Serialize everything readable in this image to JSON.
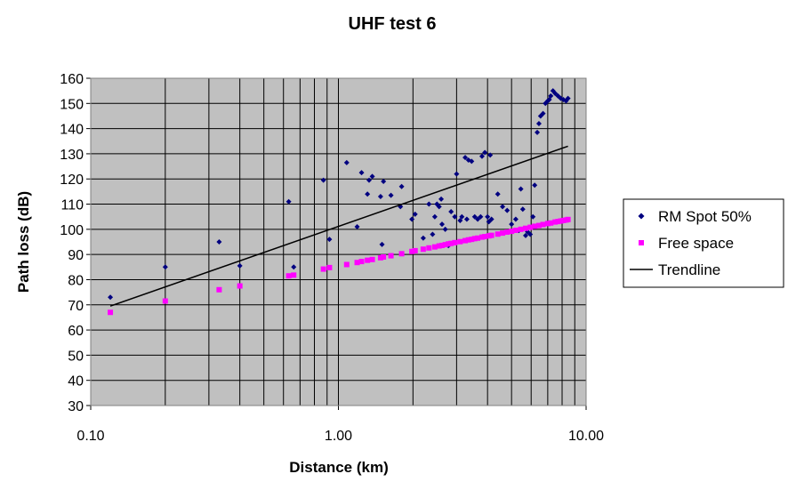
{
  "chart_data": {
    "type": "scatter",
    "title": "UHF test 6",
    "xlabel": "Distance (km)",
    "ylabel": "Path loss (dB)",
    "x_scale": "log",
    "xlim": [
      0.1,
      10
    ],
    "ylim": [
      30,
      160
    ],
    "x_ticks": [
      0.1,
      1,
      10
    ],
    "x_tick_labels": [
      "0.10",
      "1.00",
      "10.00"
    ],
    "y_ticks": [
      30,
      40,
      50,
      60,
      70,
      80,
      90,
      100,
      110,
      120,
      130,
      140,
      150,
      160
    ],
    "y_tick_labels": [
      "30",
      "40",
      "50",
      "60",
      "70",
      "80",
      "90",
      "100",
      "110",
      "120",
      "130",
      "140",
      "150",
      "160"
    ],
    "grid": true,
    "plot_background": "#c0c0c0",
    "legend_position": "right",
    "series": [
      {
        "name": "RM Spot 50%",
        "kind": "scatter",
        "marker": "diamond",
        "color": "#000080",
        "points": [
          [
            0.12,
            73
          ],
          [
            0.2,
            85
          ],
          [
            0.33,
            95
          ],
          [
            0.4,
            85.5
          ],
          [
            0.63,
            111
          ],
          [
            0.66,
            85
          ],
          [
            0.87,
            119.5
          ],
          [
            0.92,
            96
          ],
          [
            1.08,
            126.5
          ],
          [
            1.19,
            101
          ],
          [
            1.24,
            122.5
          ],
          [
            1.31,
            114
          ],
          [
            1.33,
            119.5
          ],
          [
            1.37,
            121
          ],
          [
            1.48,
            113
          ],
          [
            1.5,
            94
          ],
          [
            1.52,
            119
          ],
          [
            1.63,
            113.5
          ],
          [
            1.8,
            117
          ],
          [
            1.78,
            109
          ],
          [
            1.98,
            104
          ],
          [
            2.04,
            106
          ],
          [
            2.2,
            96.5
          ],
          [
            2.32,
            110
          ],
          [
            2.4,
            98
          ],
          [
            2.45,
            105
          ],
          [
            2.5,
            110
          ],
          [
            2.55,
            109
          ],
          [
            2.6,
            112
          ],
          [
            2.62,
            102
          ],
          [
            2.7,
            100
          ],
          [
            2.78,
            93.5
          ],
          [
            2.85,
            107
          ],
          [
            2.95,
            105
          ],
          [
            3.0,
            122
          ],
          [
            3.1,
            103.5
          ],
          [
            3.15,
            105
          ],
          [
            3.25,
            128.5
          ],
          [
            3.3,
            104
          ],
          [
            3.35,
            127.5
          ],
          [
            3.45,
            127
          ],
          [
            3.55,
            105
          ],
          [
            3.65,
            104
          ],
          [
            3.75,
            105
          ],
          [
            3.8,
            129
          ],
          [
            3.9,
            130.5
          ],
          [
            4.0,
            105
          ],
          [
            4.05,
            103
          ],
          [
            4.1,
            129.5
          ],
          [
            4.15,
            104
          ],
          [
            4.4,
            114
          ],
          [
            4.6,
            109
          ],
          [
            4.8,
            107.5
          ],
          [
            5.0,
            102
          ],
          [
            5.2,
            104
          ],
          [
            5.35,
            99.5
          ],
          [
            5.45,
            116
          ],
          [
            5.55,
            108
          ],
          [
            5.7,
            97.5
          ],
          [
            5.8,
            99
          ],
          [
            5.95,
            98
          ],
          [
            6.1,
            105
          ],
          [
            6.2,
            117.5
          ],
          [
            6.35,
            138.5
          ],
          [
            6.45,
            142
          ],
          [
            6.55,
            145
          ],
          [
            6.7,
            146
          ],
          [
            6.85,
            150
          ],
          [
            7.0,
            151
          ],
          [
            7.1,
            151.5
          ],
          [
            7.2,
            153
          ],
          [
            7.35,
            155
          ],
          [
            7.5,
            154
          ],
          [
            7.7,
            153
          ],
          [
            7.9,
            152
          ],
          [
            8.1,
            151.5
          ],
          [
            8.3,
            151
          ],
          [
            8.45,
            152
          ]
        ]
      },
      {
        "name": "Free space",
        "kind": "scatter",
        "marker": "square",
        "color": "#ff00ff",
        "points": [
          [
            0.12,
            67
          ],
          [
            0.2,
            71.5
          ],
          [
            0.33,
            76
          ],
          [
            0.4,
            77.5
          ],
          [
            0.63,
            81.5
          ],
          [
            0.66,
            81.8
          ],
          [
            0.87,
            84.2
          ],
          [
            0.92,
            84.8
          ],
          [
            1.08,
            86
          ],
          [
            1.19,
            86.8
          ],
          [
            1.24,
            87.2
          ],
          [
            1.31,
            87.7
          ],
          [
            1.37,
            88
          ],
          [
            1.48,
            88.7
          ],
          [
            1.52,
            89
          ],
          [
            1.63,
            89.5
          ],
          [
            1.8,
            90.3
          ],
          [
            1.98,
            91.2
          ],
          [
            2.04,
            91.5
          ],
          [
            2.2,
            92.1
          ],
          [
            2.32,
            92.6
          ],
          [
            2.45,
            93
          ],
          [
            2.55,
            93.4
          ],
          [
            2.62,
            93.6
          ],
          [
            2.7,
            93.9
          ],
          [
            2.78,
            94.2
          ],
          [
            2.85,
            94.4
          ],
          [
            2.95,
            94.7
          ],
          [
            3.1,
            95.1
          ],
          [
            3.25,
            95.5
          ],
          [
            3.35,
            95.8
          ],
          [
            3.45,
            96
          ],
          [
            3.55,
            96.3
          ],
          [
            3.65,
            96.5
          ],
          [
            3.8,
            96.9
          ],
          [
            3.9,
            97.1
          ],
          [
            4.05,
            97.4
          ],
          [
            4.15,
            97.6
          ],
          [
            4.4,
            98.1
          ],
          [
            4.6,
            98.5
          ],
          [
            4.8,
            98.9
          ],
          [
            5.0,
            99.2
          ],
          [
            5.2,
            99.6
          ],
          [
            5.45,
            100
          ],
          [
            5.7,
            100.4
          ],
          [
            5.95,
            100.8
          ],
          [
            6.2,
            101.2
          ],
          [
            6.45,
            101.5
          ],
          [
            6.7,
            101.9
          ],
          [
            7.0,
            102.3
          ],
          [
            7.2,
            102.5
          ],
          [
            7.5,
            102.9
          ],
          [
            7.7,
            103.1
          ],
          [
            7.9,
            103.3
          ],
          [
            8.1,
            103.5
          ],
          [
            8.3,
            103.7
          ],
          [
            8.45,
            103.9
          ]
        ]
      },
      {
        "name": "Trendline",
        "kind": "line",
        "color": "#000000",
        "points": [
          [
            0.12,
            69.5
          ],
          [
            8.45,
            133
          ]
        ]
      }
    ]
  }
}
